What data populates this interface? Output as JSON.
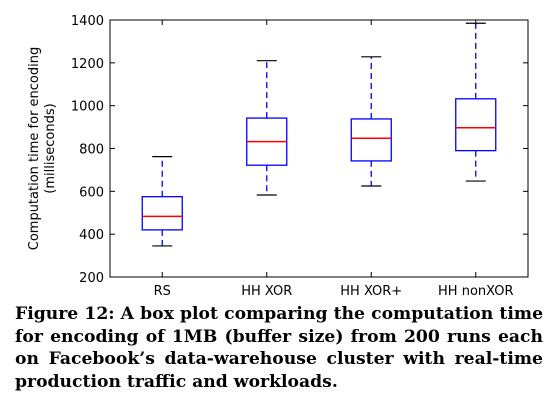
{
  "chart_data": {
    "type": "box",
    "ylabel_lines": [
      "Computation time for encoding",
      "(milliseconds)"
    ],
    "ylim": [
      200,
      1400
    ],
    "yticks": [
      200,
      400,
      600,
      800,
      1000,
      1200,
      1400
    ],
    "grid": false,
    "categories": [
      "RS",
      "HH XOR",
      "HH XOR+",
      "HH nonXOR"
    ],
    "boxes": [
      {
        "category": "RS",
        "whisker_low": 345,
        "q1": 420,
        "median": 483,
        "q3": 575,
        "whisker_high": 762
      },
      {
        "category": "HH XOR",
        "whisker_low": 583,
        "q1": 722,
        "median": 832,
        "q3": 942,
        "whisker_high": 1210
      },
      {
        "category": "HH XOR+",
        "whisker_low": 625,
        "q1": 742,
        "median": 848,
        "q3": 938,
        "whisker_high": 1228
      },
      {
        "category": "HH nonXOR",
        "whisker_low": 648,
        "q1": 790,
        "median": 897,
        "q3": 1032,
        "whisker_high": 1385
      }
    ],
    "colors": {
      "box": "#0000ff",
      "median": "#ff0000",
      "whisker": "#0000ff",
      "cap": "#000000",
      "axes": "#000000"
    }
  },
  "caption": {
    "label": "Figure 12:",
    "text": "A box plot comparing the computation time for encoding of 1MB (buffer size) from 200 runs each on Facebook’s data-warehouse cluster with real-time production traffic and workloads."
  }
}
